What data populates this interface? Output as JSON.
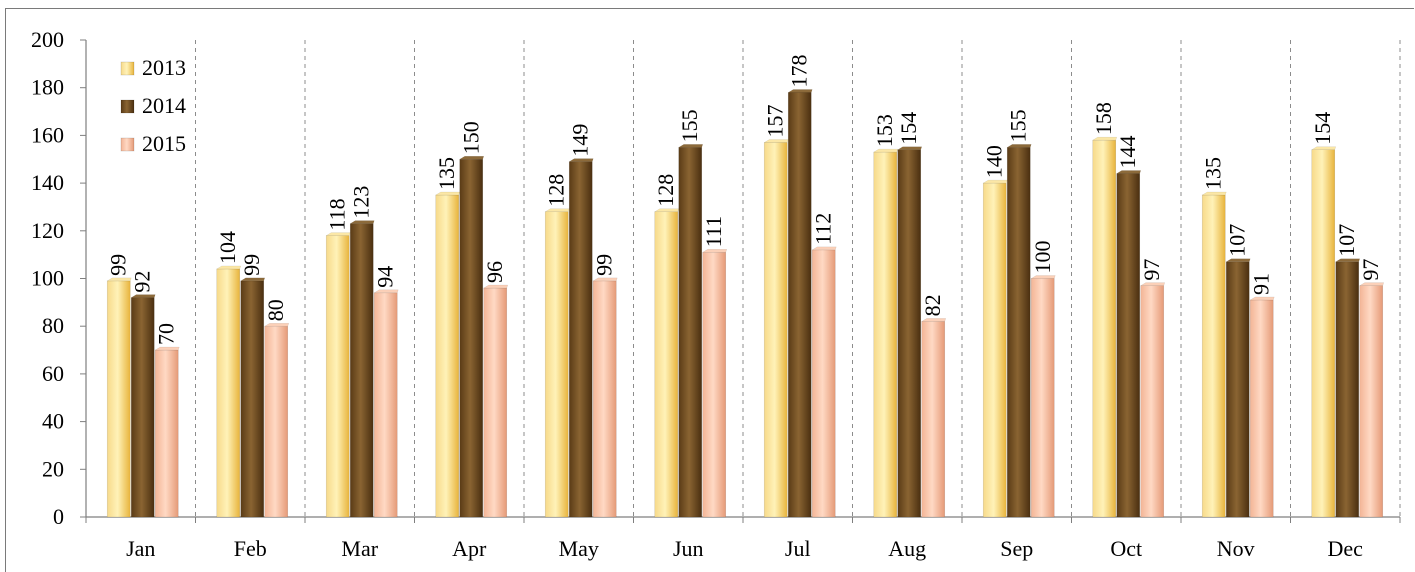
{
  "title_fragment": "…. . . . . . . . . . . . . . . . . . . . . . . . . . . . . . . . . . . . . . . . . . . . . . . . . . . . . ,  . . . . . . , . . . . . ( . . , . . . )",
  "colors": {
    "2013": "#f2c553",
    "2014": "#6b4a22",
    "2015": "#f2b08f",
    "axis": "#7f7f7f",
    "divider": "#8c8c8c"
  },
  "chart_data": {
    "type": "bar",
    "categories": [
      "Jan",
      "Feb",
      "Mar",
      "Apr",
      "May",
      "Jun",
      "Jul",
      "Aug",
      "Sep",
      "Oct",
      "Nov",
      "Dec"
    ],
    "series": [
      {
        "name": "2013",
        "values": [
          99,
          104,
          118,
          135,
          128,
          128,
          157,
          153,
          140,
          158,
          135,
          154
        ]
      },
      {
        "name": "2014",
        "values": [
          92,
          99,
          123,
          150,
          149,
          155,
          178,
          154,
          155,
          144,
          107,
          107
        ]
      },
      {
        "name": "2015",
        "values": [
          70,
          80,
          94,
          96,
          99,
          111,
          112,
          82,
          100,
          97,
          91,
          97
        ]
      }
    ],
    "ylim": [
      0,
      200
    ],
    "yticks": [
      0,
      20,
      40,
      60,
      80,
      100,
      120,
      140,
      160,
      180,
      200
    ],
    "legend_position": "top-left",
    "grid": "vertical dashed category dividers"
  }
}
